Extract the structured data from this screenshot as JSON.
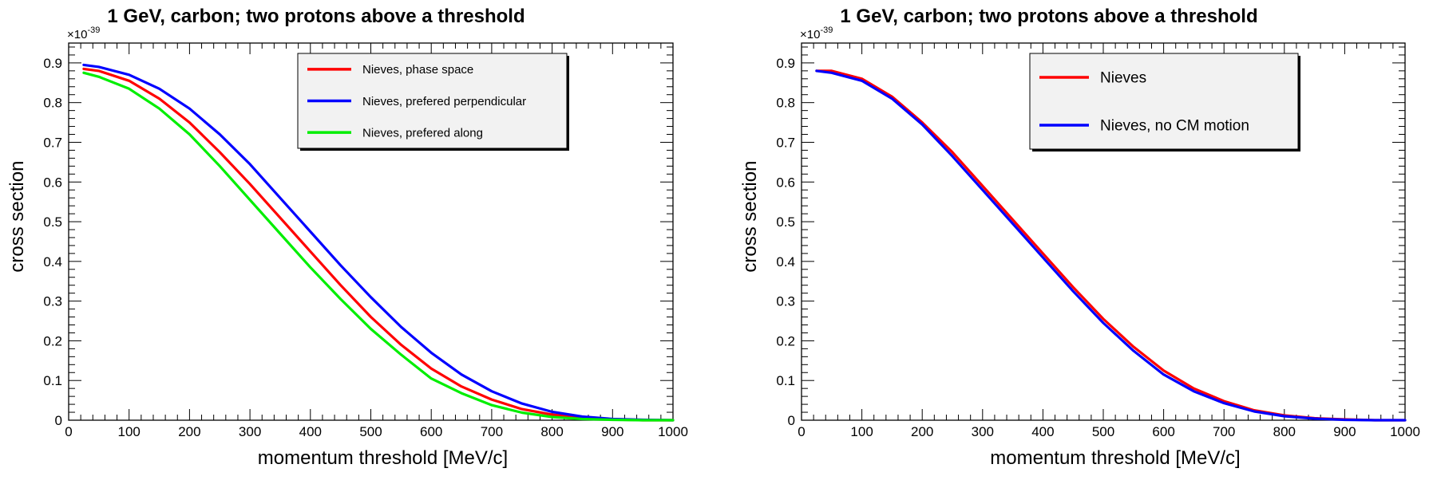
{
  "chart_data": [
    {
      "type": "line",
      "title": "1 GeV, carbon; two protons above a threshold",
      "xlabel": "momentum threshold [MeV/c]",
      "ylabel": "cross section",
      "y_multiplier": "×10",
      "y_exponent": "-39",
      "xlim": [
        0,
        1000
      ],
      "ylim": [
        0,
        0.95
      ],
      "x_ticks": [
        0,
        100,
        200,
        300,
        400,
        500,
        600,
        700,
        800,
        900,
        1000
      ],
      "y_ticks": [
        0,
        0.1,
        0.2,
        0.3,
        0.4,
        0.5,
        0.6,
        0.7,
        0.8,
        0.9
      ],
      "legend_position": "top-center",
      "grid": false,
      "x": [
        25,
        50,
        100,
        150,
        200,
        250,
        300,
        350,
        400,
        450,
        500,
        550,
        600,
        650,
        700,
        750,
        800,
        850,
        900,
        950,
        1000
      ],
      "series": [
        {
          "name": "Nieves, phase space",
          "color": "#ff0000",
          "values": [
            0.885,
            0.88,
            0.855,
            0.81,
            0.75,
            0.675,
            0.595,
            0.51,
            0.425,
            0.34,
            0.26,
            0.19,
            0.13,
            0.085,
            0.052,
            0.028,
            0.014,
            0.006,
            0.002,
            0.0,
            0.0
          ]
        },
        {
          "name": "Nieves, prefered perpendicular",
          "color": "#0000ff",
          "values": [
            0.895,
            0.89,
            0.87,
            0.835,
            0.785,
            0.72,
            0.645,
            0.56,
            0.475,
            0.39,
            0.31,
            0.235,
            0.17,
            0.115,
            0.073,
            0.042,
            0.021,
            0.009,
            0.003,
            0.001,
            0.0
          ]
        },
        {
          "name": "Nieves, prefered along",
          "color": "#00ee00",
          "values": [
            0.875,
            0.865,
            0.835,
            0.785,
            0.72,
            0.64,
            0.555,
            0.47,
            0.385,
            0.305,
            0.23,
            0.165,
            0.105,
            0.068,
            0.038,
            0.019,
            0.008,
            0.003,
            0.001,
            0.0,
            0.0
          ]
        }
      ]
    },
    {
      "type": "line",
      "title": "1 GeV, carbon; two protons above a threshold",
      "xlabel": "momentum threshold [MeV/c]",
      "ylabel": "cross section",
      "y_multiplier": "×10",
      "y_exponent": "-39",
      "xlim": [
        0,
        1000
      ],
      "ylim": [
        0,
        0.95
      ],
      "x_ticks": [
        0,
        100,
        200,
        300,
        400,
        500,
        600,
        700,
        800,
        900,
        1000
      ],
      "y_ticks": [
        0,
        0.1,
        0.2,
        0.3,
        0.4,
        0.5,
        0.6,
        0.7,
        0.8,
        0.9
      ],
      "legend_position": "top-center",
      "grid": false,
      "x": [
        25,
        50,
        100,
        150,
        200,
        250,
        300,
        350,
        400,
        450,
        500,
        550,
        600,
        650,
        700,
        750,
        800,
        850,
        900,
        950,
        1000
      ],
      "series": [
        {
          "name": "Nieves",
          "color": "#ff0000",
          "values": [
            0.88,
            0.88,
            0.86,
            0.815,
            0.75,
            0.675,
            0.59,
            0.505,
            0.42,
            0.335,
            0.255,
            0.185,
            0.125,
            0.08,
            0.048,
            0.025,
            0.012,
            0.005,
            0.002,
            0.0,
            0.0
          ]
        },
        {
          "name": "Nieves, no CM motion",
          "color": "#0000ff",
          "values": [
            0.88,
            0.875,
            0.855,
            0.81,
            0.745,
            0.665,
            0.58,
            0.495,
            0.41,
            0.325,
            0.245,
            0.175,
            0.115,
            0.073,
            0.043,
            0.022,
            0.01,
            0.004,
            0.001,
            0.0,
            0.0
          ]
        }
      ]
    }
  ]
}
